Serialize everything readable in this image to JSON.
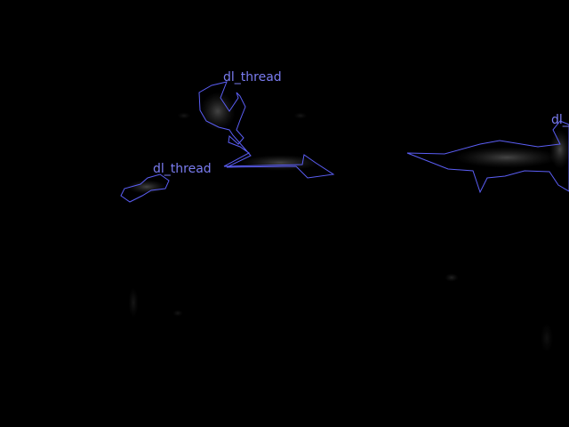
{
  "image": {
    "description_color": "#000000",
    "annotation_color": "#5b5ef5",
    "label_color": "#7a7cf0"
  },
  "annotations": [
    {
      "label": "dl_thread"
    },
    {
      "label": "dl_thread"
    },
    {
      "label": "dl_thread"
    }
  ]
}
